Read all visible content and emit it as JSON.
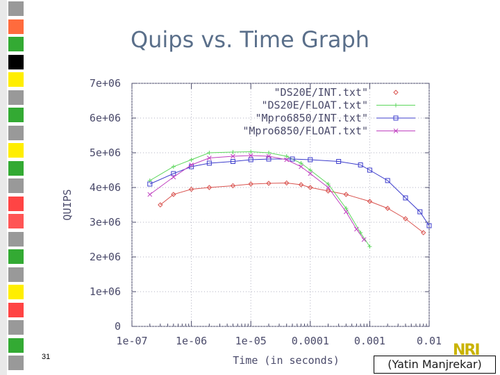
{
  "slide": {
    "title": "Quips vs. Time Graph",
    "number": "31",
    "credit": "(Yatin Manjrekar)"
  },
  "colors": {
    "title": "#5a6f8a",
    "series_int_ds20e": "#d9534f",
    "series_float_ds20e": "#5cd65c",
    "series_int_mpro": "#3c3ccc",
    "series_float_mpro": "#c040c0",
    "axes": "#4a4a6a"
  },
  "side_strip": [
    "#999999",
    "#ff6b3d",
    "#33aa33",
    "#000000",
    "#ffee00",
    "#999999",
    "#33aa33",
    "#999999",
    "#ffee00",
    "#33aa33",
    "#999999",
    "#ff4444",
    "#ff5555",
    "#999999",
    "#33aa33",
    "#999999",
    "#ffee00",
    "#ff4444",
    "#999999",
    "#33aa33",
    "#999999"
  ],
  "chart_data": {
    "type": "line",
    "title": "",
    "xlabel": "Time (in seconds)",
    "ylabel": "QUIPS",
    "x_scale": "log",
    "xlim": [
      1e-07,
      0.01
    ],
    "ylim": [
      0,
      7000000
    ],
    "x_ticks": [
      "1e-07",
      "1e-06",
      "1e-05",
      "0.0001",
      "0.001",
      "0.01"
    ],
    "y_ticks": [
      "0",
      "1e+06",
      "2e+06",
      "3e+06",
      "4e+06",
      "5e+06",
      "6e+06",
      "7e+06"
    ],
    "grid": true,
    "legend_position": "top-right",
    "series": [
      {
        "name": "\"DS20E/INT.txt\"",
        "marker": "diamond",
        "x": [
          3e-07,
          5e-07,
          1e-06,
          2e-06,
          5e-06,
          1e-05,
          2e-05,
          4e-05,
          7e-05,
          0.0001,
          0.0002,
          0.0004,
          0.001,
          0.002,
          0.004,
          0.008
        ],
        "y": [
          3500000,
          3800000,
          3950000,
          4000000,
          4050000,
          4100000,
          4120000,
          4130000,
          4080000,
          4000000,
          3900000,
          3800000,
          3600000,
          3400000,
          3100000,
          2700000
        ]
      },
      {
        "name": "\"DS20E/FLOAT.txt\"",
        "marker": "plus",
        "x": [
          2e-07,
          5e-07,
          1e-06,
          2e-06,
          5e-06,
          1e-05,
          2e-05,
          4e-05,
          7e-05,
          0.0001,
          0.0002,
          0.0004,
          0.0007,
          0.001
        ],
        "y": [
          4200000,
          4600000,
          4800000,
          5000000,
          5020000,
          5030000,
          5000000,
          4900000,
          4700000,
          4500000,
          4100000,
          3400000,
          2700000,
          2300000
        ]
      },
      {
        "name": "\"Mpro6850/INT.txt\"",
        "marker": "square",
        "x": [
          2e-07,
          5e-07,
          1e-06,
          2e-06,
          5e-06,
          1e-05,
          2e-05,
          5e-05,
          0.0001,
          0.0003,
          0.0007,
          0.001,
          0.002,
          0.004,
          0.007,
          0.01
        ],
        "y": [
          4100000,
          4400000,
          4600000,
          4700000,
          4750000,
          4800000,
          4820000,
          4820000,
          4800000,
          4750000,
          4650000,
          4500000,
          4200000,
          3700000,
          3300000,
          2900000
        ]
      },
      {
        "name": "\"Mpro6850/FLOAT.txt\"",
        "marker": "cross",
        "x": [
          2e-07,
          5e-07,
          1e-06,
          2e-06,
          5e-06,
          1e-05,
          2e-05,
          4e-05,
          7e-05,
          0.0001,
          0.0002,
          0.0004,
          0.0006,
          0.0008
        ],
        "y": [
          3800000,
          4300000,
          4650000,
          4850000,
          4900000,
          4920000,
          4900000,
          4800000,
          4600000,
          4400000,
          4000000,
          3300000,
          2800000,
          2500000
        ]
      }
    ]
  }
}
